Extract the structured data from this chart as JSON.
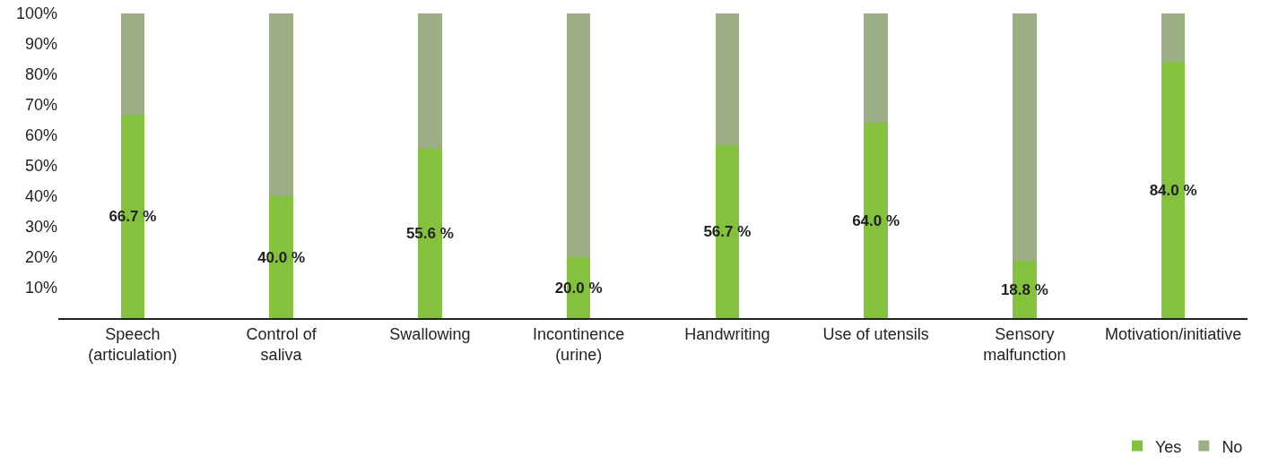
{
  "chart_data": {
    "type": "bar",
    "stacked": true,
    "categories": [
      "Speech (articulation)",
      "Control of saliva",
      "Swallowing",
      "Incontinence (urine)",
      "Handwriting",
      "Use of utensils",
      "Sensory malfunction",
      "Motivation/initiative"
    ],
    "series": [
      {
        "name": "Yes",
        "color": "#84c13f",
        "values": [
          66.7,
          40.0,
          55.6,
          20.0,
          56.7,
          64.0,
          18.8,
          84.0
        ],
        "value_labels": [
          "66.7 %",
          "40.0 %",
          "55.6 %",
          "20.0 %",
          "56.7 %",
          "64.0 %",
          "18.8 %",
          "84.0 %"
        ]
      },
      {
        "name": "No",
        "color": "#9caf84",
        "values": [
          33.3,
          60.0,
          44.4,
          80.0,
          43.3,
          36.0,
          81.2,
          16.0
        ]
      }
    ],
    "ylim": [
      0,
      100
    ],
    "yticks": [
      {
        "value": 10,
        "label": "10%"
      },
      {
        "value": 20,
        "label": "20%"
      },
      {
        "value": 30,
        "label": "30%"
      },
      {
        "value": 40,
        "label": "40%"
      },
      {
        "value": 50,
        "label": "50%"
      },
      {
        "value": 60,
        "label": "60%"
      },
      {
        "value": 70,
        "label": "70%"
      },
      {
        "value": 80,
        "label": "80%"
      },
      {
        "value": 90,
        "label": "90%"
      },
      {
        "value": 100,
        "label": "100%"
      }
    ],
    "grid": false,
    "legend": "bottom right"
  }
}
